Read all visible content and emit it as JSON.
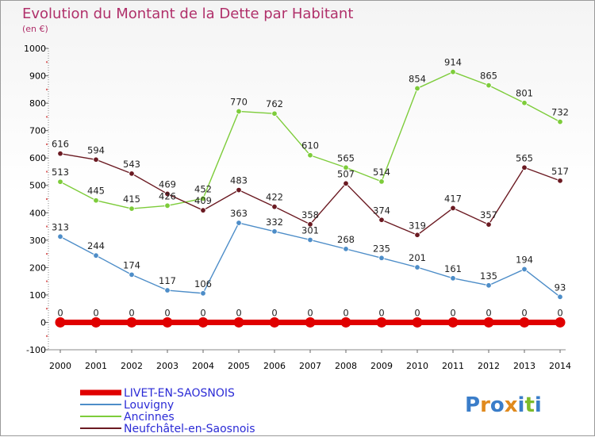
{
  "chart_data": {
    "type": "line",
    "title": "Evolution du Montant de la Dette par Habitant",
    "subtitle": "(en €)",
    "x": [
      2000,
      2001,
      2002,
      2003,
      2004,
      2005,
      2006,
      2007,
      2008,
      2009,
      2010,
      2011,
      2012,
      2013,
      2014
    ],
    "ylim": [
      -100,
      1000
    ],
    "yticks": [
      -100,
      0,
      100,
      200,
      300,
      400,
      500,
      600,
      700,
      800,
      900,
      1000
    ],
    "grid": false,
    "legend_position": "bottom-left",
    "series": [
      {
        "name": "LIVET-EN-SAOSNOIS",
        "color": "#e00000",
        "values": [
          0,
          0,
          0,
          0,
          0,
          0,
          0,
          0,
          0,
          0,
          0,
          0,
          0,
          0,
          0
        ]
      },
      {
        "name": "Louvigny",
        "color": "#4d8dc8",
        "values": [
          313,
          244,
          174,
          117,
          106,
          363,
          332,
          301,
          268,
          235,
          201,
          161,
          135,
          194,
          93
        ]
      },
      {
        "name": "Ancinnes",
        "color": "#7dcc3a",
        "values": [
          513,
          445,
          415,
          426,
          452,
          770,
          762,
          610,
          565,
          514,
          854,
          914,
          865,
          801,
          732
        ]
      },
      {
        "name": "Neufchâtel-en-Saosnois",
        "color": "#6b1a22",
        "values": [
          616,
          594,
          543,
          469,
          409,
          483,
          422,
          358,
          507,
          374,
          319,
          417,
          357,
          565,
          517
        ]
      }
    ]
  },
  "logo": {
    "text": "Proxiti",
    "letters": [
      "P",
      "r",
      "o",
      "x",
      "i",
      "t",
      "i"
    ],
    "colors": [
      "#3a7dc9",
      "#e08a1e",
      "#3a7dc9",
      "#e08a1e",
      "#3a7dc9",
      "#7dbb2a",
      "#3a7dc9"
    ]
  }
}
